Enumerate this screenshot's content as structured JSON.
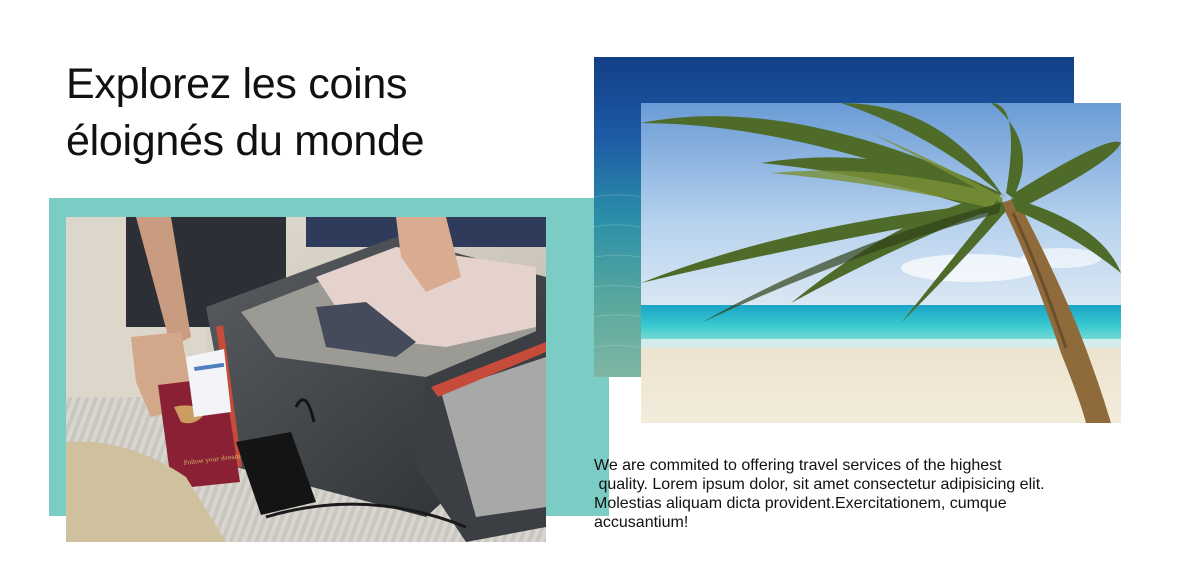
{
  "hero": {
    "title_line_1": "Explorez les coins",
    "title_line_2": "éloignés du monde"
  },
  "images": {
    "luggage": "luggage-packing-photo",
    "sea": "ocean-water-photo",
    "beach": "palm-beach-photo"
  },
  "description": {
    "line_1": "We are commited to offering travel services of the highest",
    "line_2": " quality. Lorem ipsum dolor, sit amet consectetur adipisicing elit.",
    "line_3": "Molestias aliquam dicta provident.Exercitationem, cumque",
    "line_4": "accusantium!"
  },
  "colors": {
    "accent": "#7bccc5",
    "text": "#111111",
    "background": "#ffffff"
  }
}
